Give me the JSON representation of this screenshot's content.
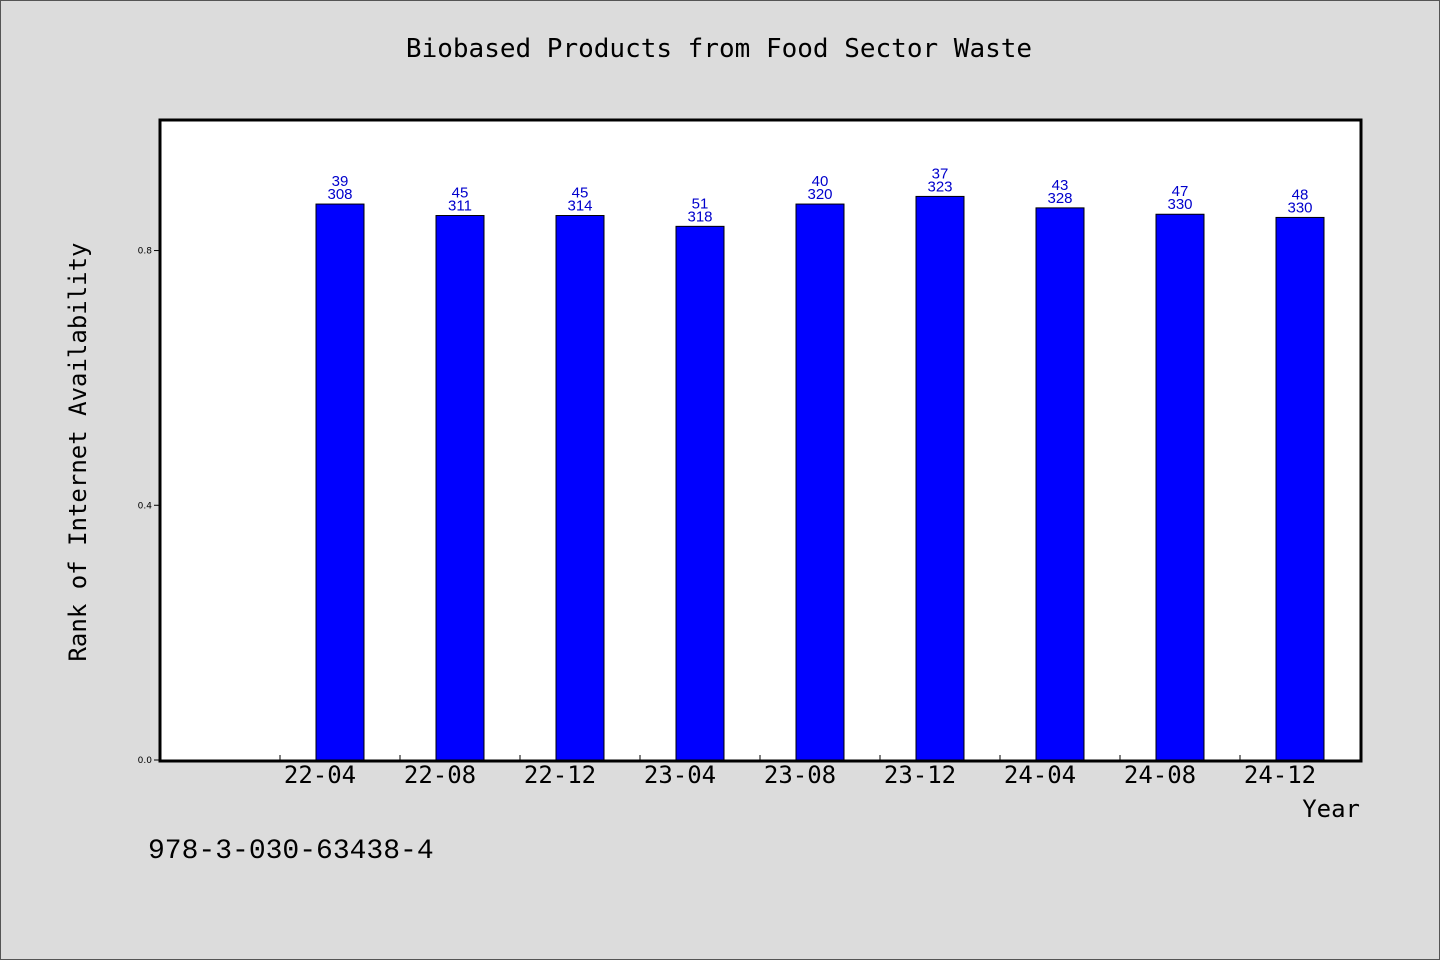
{
  "chart_data": {
    "type": "bar",
    "title": "Biobased Products from Food Sector Waste",
    "xlabel": "Year",
    "ylabel": "Rank of Internet Availability",
    "ylim": [
      0,
      1.005
    ],
    "yticks": [
      "0.0",
      "0.4",
      "0.8"
    ],
    "categories": [
      "22-04",
      "22-08",
      "22-12",
      "23-04",
      "23-08",
      "23-12",
      "24-04",
      "24-08",
      "24-12"
    ],
    "values": [
      0.873,
      0.855,
      0.855,
      0.838,
      0.873,
      0.885,
      0.867,
      0.857,
      0.852
    ],
    "label_top": [
      "39",
      "45",
      "45",
      "51",
      "40",
      "37",
      "43",
      "47",
      "48"
    ],
    "label_bottom": [
      "308",
      "311",
      "314",
      "318",
      "320",
      "323",
      "328",
      "330",
      "330"
    ],
    "grid": false,
    "bar_color": "#0000ff",
    "label_color": "#0000cc"
  },
  "footer": {
    "isbn": "978-3-030-63438-4"
  }
}
